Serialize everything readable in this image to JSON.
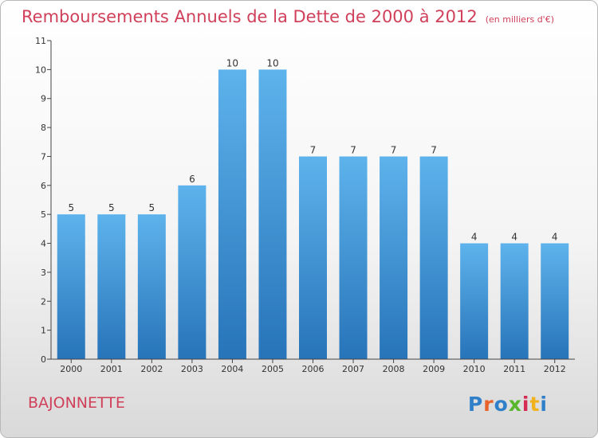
{
  "header": {
    "title": "Remboursements Annuels de la Dette de 2000 à 2012",
    "unit": "(en milliers d'€)"
  },
  "footer": {
    "place": "BAJONNETTE",
    "brand_letters": [
      "P",
      "r",
      "o",
      "x",
      "i",
      "t",
      "i"
    ],
    "brand_colors": [
      "#2f80c9",
      "#e8632a",
      "#2f80c9",
      "#58b62b",
      "#d42a53",
      "#f2b21e",
      "#2f80c9"
    ]
  },
  "chart_data": {
    "type": "bar",
    "title": "Remboursements Annuels de la Dette de 2000 à 2012",
    "xlabel": "",
    "ylabel": "",
    "categories": [
      "2000",
      "2001",
      "2002",
      "2003",
      "2004",
      "2005",
      "2006",
      "2007",
      "2008",
      "2009",
      "2010",
      "2011",
      "2012"
    ],
    "values": [
      5,
      5,
      5,
      6,
      10,
      10,
      7,
      7,
      7,
      7,
      4,
      4,
      4
    ],
    "ylim": [
      0,
      11
    ],
    "yticks": [
      0,
      1,
      2,
      3,
      4,
      5,
      6,
      7,
      8,
      9,
      10,
      11
    ],
    "grid": false,
    "data_labels": true,
    "bar_color": "#4b9fe1",
    "title_color": "#d0405a"
  }
}
